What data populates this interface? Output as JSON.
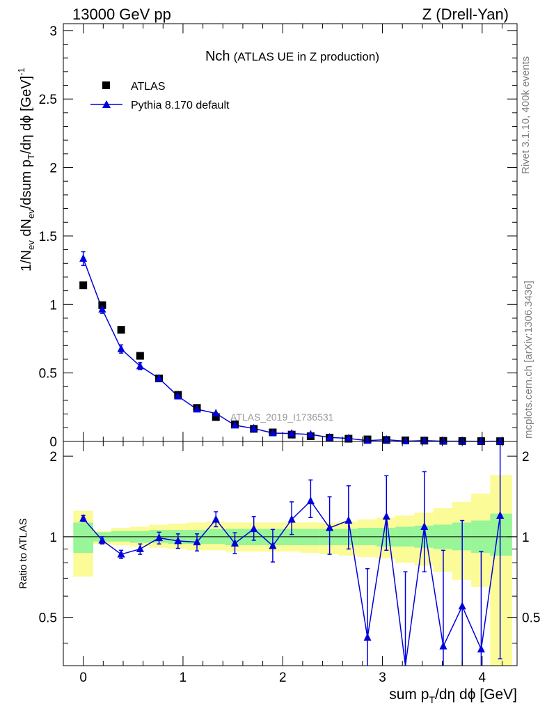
{
  "header": {
    "left": "13000 GeV pp",
    "right": "Z (Drell-Yan)"
  },
  "plot_title": {
    "main": "Nch",
    "sub": "(ATLAS UE in Z production)"
  },
  "watermark": "ATLAS_2019_I1736531",
  "side_labels": {
    "rivet": "Rivet 3.1.10,  400k events",
    "site": "mcplots.cern.ch [arXiv:1306.3436]"
  },
  "axis_labels": {
    "main_y": {
      "p1": "1/N",
      "p1sub": "ev",
      "p2": " dN",
      "p2sub": "ev",
      "p3": "/dsum p",
      "p3sub": "T",
      "p4": "/dη dϕ  [GeV]",
      "p4sup": "-1"
    },
    "ratio_y": "Ratio to ATLAS",
    "x": {
      "p1": "sum p",
      "sub": "T",
      "p2": "/dη dϕ [GeV]"
    }
  },
  "colors": {
    "data": "#000000",
    "mc": "#0000dd",
    "band_inner": "#98f598",
    "band_outer": "#fbfb98"
  },
  "chart_data": {
    "type": "scatter",
    "x_range": [
      -0.2,
      4.35
    ],
    "main_ylim": [
      0,
      3.05
    ],
    "ratio_ylim": [
      0.33,
      2.27
    ],
    "x_ticks": [
      0,
      1,
      2,
      3,
      4
    ],
    "x_tick_labels": [
      "0",
      "1",
      "2",
      "3",
      "4"
    ],
    "main_y_ticks": [
      0,
      0.5,
      1,
      1.5,
      2,
      2.5,
      3
    ],
    "main_y_tick_labels": [
      "0",
      "0.5",
      "1",
      "1.5",
      "2",
      "2.5",
      "3"
    ],
    "ratio_y_ticks": [
      0.5,
      1,
      2
    ],
    "ratio_y_tick_labels": [
      "0.5",
      "1",
      "2"
    ],
    "x": [
      0,
      0.19,
      0.38,
      0.57,
      0.76,
      0.95,
      1.14,
      1.33,
      1.52,
      1.71,
      1.9,
      2.09,
      2.28,
      2.47,
      2.66,
      2.85,
      3.04,
      3.23,
      3.42,
      3.61,
      3.8,
      3.99,
      4.18
    ],
    "bin_edges": [
      -0.1,
      0.1,
      0.28,
      0.47,
      0.66,
      0.85,
      1.04,
      1.23,
      1.42,
      1.61,
      1.8,
      1.99,
      2.18,
      2.37,
      2.56,
      2.75,
      2.94,
      3.13,
      3.32,
      3.51,
      3.7,
      3.89,
      4.08,
      4.3
    ],
    "series": [
      {
        "name": "ATLAS",
        "marker": "square",
        "values": [
          1.14,
          0.995,
          0.815,
          0.625,
          0.46,
          0.34,
          0.245,
          0.178,
          0.125,
          0.092,
          0.066,
          0.05,
          0.038,
          0.028,
          0.02,
          0.015,
          0.011,
          0.008,
          0.006,
          0.0045,
          0.0033,
          0.0025,
          0.0018
        ]
      },
      {
        "name": "Pythia 8.170 default",
        "marker": "triangle",
        "values": [
          1.335,
          0.965,
          0.675,
          0.55,
          0.46,
          0.33,
          0.235,
          0.205,
          0.118,
          0.095,
          0.061,
          0.058,
          0.051,
          0.029,
          0.022,
          0.0062,
          0.013,
          0.002,
          0.0065,
          0.0018,
          0.0018,
          0.001,
          0.0022
        ],
        "errors": [
          0.05,
          0.03,
          0.03,
          0.025,
          0.02,
          0.015,
          0.012,
          0.01,
          0.008,
          0.006,
          0.005,
          0.004,
          0.004,
          0.003,
          0.003,
          0.002,
          0.002,
          0.002,
          0.002,
          0.002,
          0.002,
          0.001,
          0.001
        ]
      }
    ],
    "ratio": {
      "values": [
        1.17,
        0.97,
        0.86,
        0.9,
        0.99,
        0.965,
        0.955,
        1.16,
        0.945,
        1.07,
        0.925,
        1.16,
        1.36,
        1.08,
        1.15,
        0.42,
        1.19,
        0.24,
        1.09,
        0.39,
        0.55,
        0.38,
        1.2
      ],
      "err_lo": [
        0.03,
        0.03,
        0.03,
        0.04,
        0.05,
        0.06,
        0.07,
        0.07,
        0.08,
        0.1,
        0.12,
        0.14,
        0.18,
        0.22,
        0.25,
        0.3,
        0.3,
        0.25,
        0.35,
        0.25,
        0.3,
        0.2,
        0.85
      ],
      "err_hi": [
        0.03,
        0.03,
        0.03,
        0.04,
        0.05,
        0.06,
        0.07,
        0.08,
        0.09,
        0.12,
        0.14,
        0.19,
        0.27,
        0.33,
        0.4,
        0.34,
        0.5,
        0.5,
        0.66,
        0.5,
        0.6,
        0.5,
        1.1
      ],
      "band_inner": [
        [
          0.87,
          1.13
        ],
        [
          0.96,
          1.04
        ],
        [
          0.96,
          1.05
        ],
        [
          0.95,
          1.05
        ],
        [
          0.95,
          1.06
        ],
        [
          0.94,
          1.06
        ],
        [
          0.94,
          1.06
        ],
        [
          0.94,
          1.07
        ],
        [
          0.93,
          1.07
        ],
        [
          0.93,
          1.07
        ],
        [
          0.93,
          1.07
        ],
        [
          0.93,
          1.07
        ],
        [
          0.93,
          1.07
        ],
        [
          0.93,
          1.07
        ],
        [
          0.93,
          1.07
        ],
        [
          0.93,
          1.08
        ],
        [
          0.92,
          1.08
        ],
        [
          0.92,
          1.09
        ],
        [
          0.91,
          1.1
        ],
        [
          0.9,
          1.11
        ],
        [
          0.89,
          1.13
        ],
        [
          0.87,
          1.15
        ],
        [
          0.85,
          1.22
        ]
      ],
      "band_outer": [
        [
          0.71,
          1.25
        ],
        [
          0.94,
          1.05
        ],
        [
          0.93,
          1.08
        ],
        [
          0.92,
          1.09
        ],
        [
          0.91,
          1.11
        ],
        [
          0.9,
          1.12
        ],
        [
          0.89,
          1.13
        ],
        [
          0.89,
          1.14
        ],
        [
          0.88,
          1.13
        ],
        [
          0.88,
          1.13
        ],
        [
          0.88,
          1.13
        ],
        [
          0.88,
          1.13
        ],
        [
          0.87,
          1.13
        ],
        [
          0.86,
          1.13
        ],
        [
          0.85,
          1.14
        ],
        [
          0.84,
          1.16
        ],
        [
          0.83,
          1.18
        ],
        [
          0.8,
          1.2
        ],
        [
          0.78,
          1.23
        ],
        [
          0.74,
          1.28
        ],
        [
          0.69,
          1.35
        ],
        [
          0.65,
          1.45
        ],
        [
          0.25,
          1.7
        ]
      ]
    }
  }
}
